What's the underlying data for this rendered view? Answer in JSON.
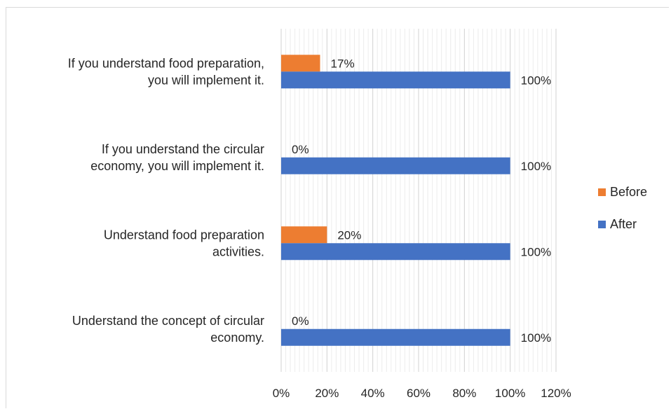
{
  "chart_data": {
    "type": "bar",
    "orientation": "horizontal",
    "categories": [
      [
        "If you understand food preparation,",
        "you will implement it."
      ],
      [
        "If you understand the circular",
        "economy, you will implement it."
      ],
      [
        "Understand food preparation",
        "activities."
      ],
      [
        "Understand the concept of circular",
        "economy."
      ]
    ],
    "series": [
      {
        "name": "Before",
        "color": "#ed7d31",
        "values": [
          17,
          0,
          20,
          0
        ],
        "labels": [
          "17%",
          "0%",
          "20%",
          "0%"
        ]
      },
      {
        "name": "After",
        "color": "#4472c4",
        "values": [
          100,
          100,
          100,
          100
        ],
        "labels": [
          "100%",
          "100%",
          "100%",
          "100%"
        ]
      }
    ],
    "xlim": [
      0,
      120
    ],
    "x_ticks": [
      "0%",
      "20%",
      "40%",
      "60%",
      "80%",
      "100%",
      "120%"
    ],
    "grid": true,
    "legend_position": "right"
  }
}
